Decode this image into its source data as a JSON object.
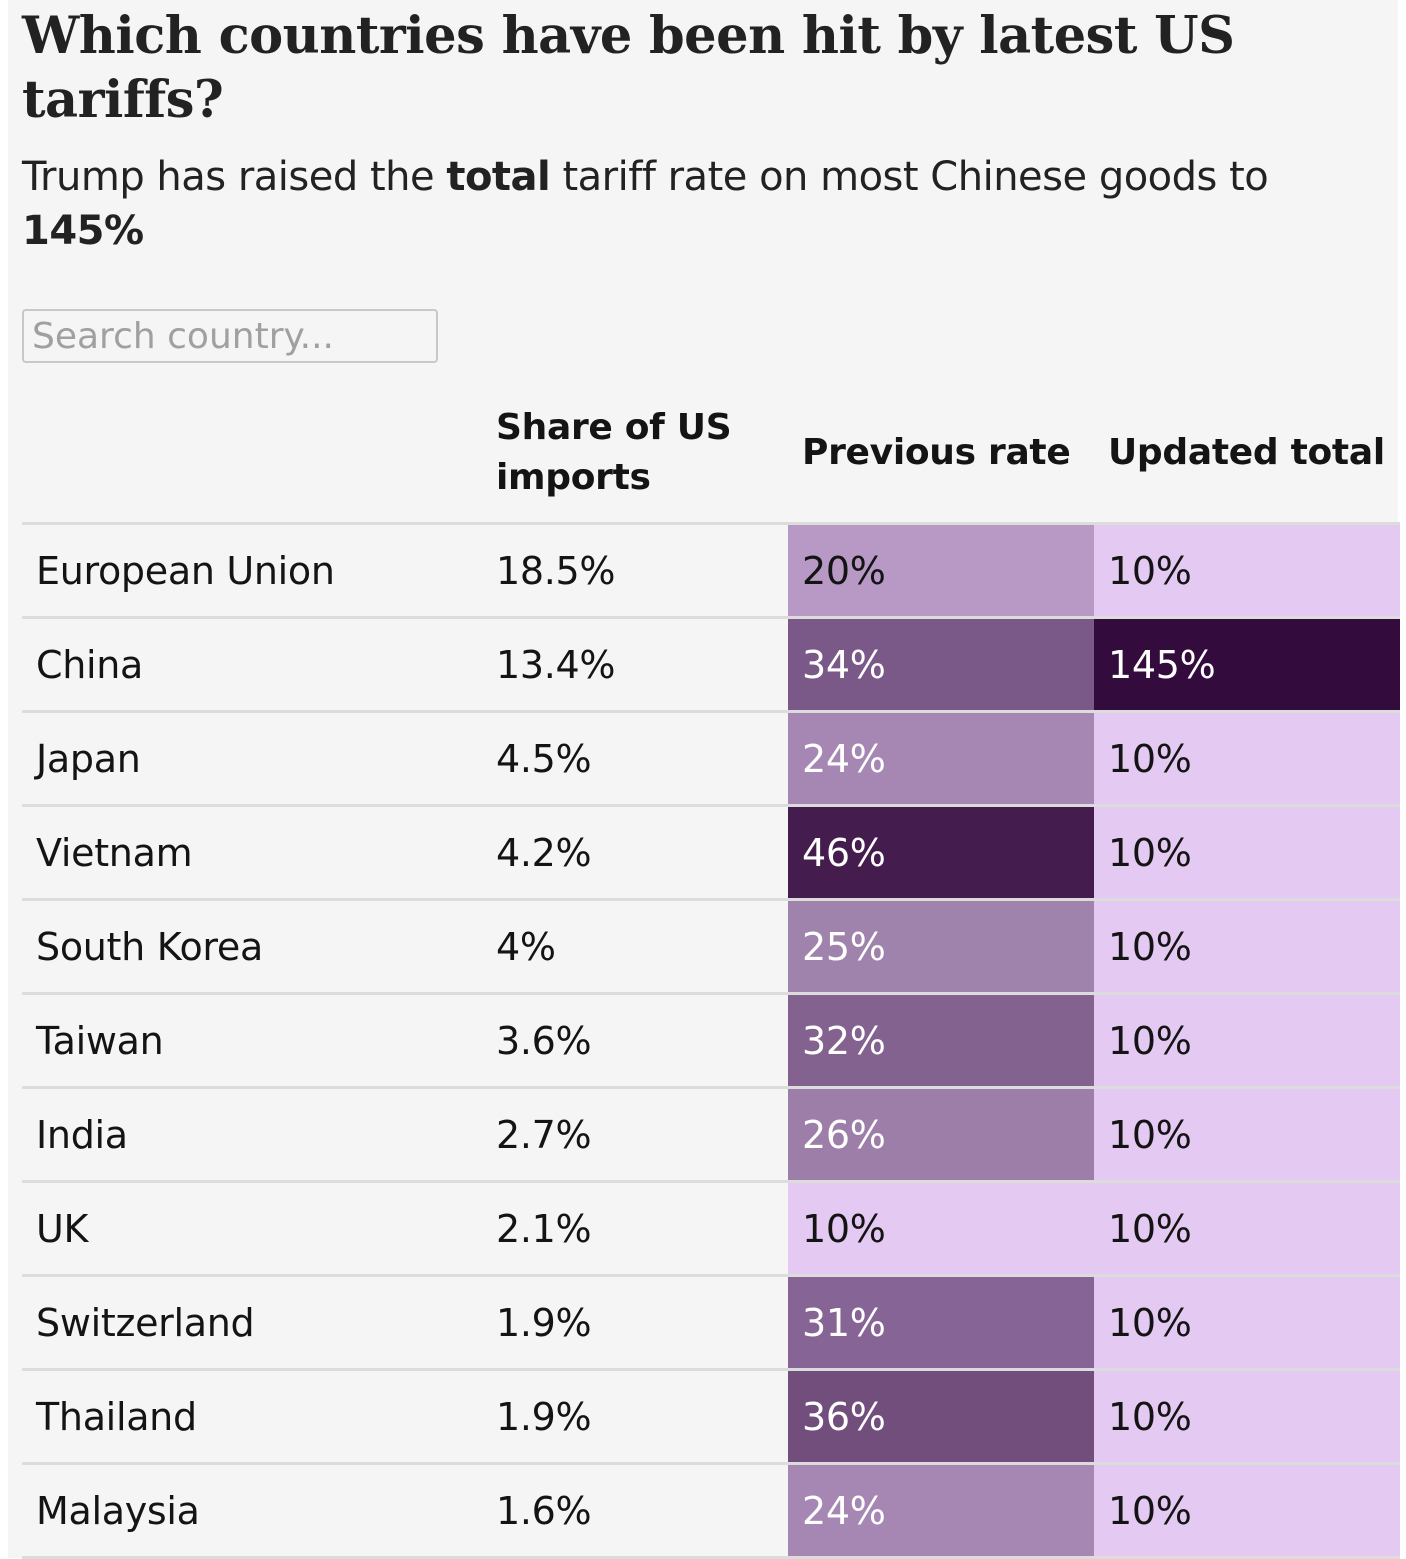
{
  "header": {
    "title": "Which countries have been hit by latest US tariffs?",
    "subtitle_pre": "Trump has raised the ",
    "subtitle_bold1": "total",
    "subtitle_mid": " tariff rate on most Chinese goods to ",
    "subtitle_bold2": "145%"
  },
  "search": {
    "placeholder": "Search country...",
    "value": ""
  },
  "chart_data": {
    "type": "table",
    "title": "Which countries have been hit by latest US tariffs?",
    "subtitle": "Trump has raised the total tariff rate on most Chinese goods to 145%",
    "columns": [
      "",
      "Share of US imports",
      "Previous rate",
      "Updated total"
    ],
    "rows": [
      {
        "country": "European Union",
        "share": "18.5%",
        "previous": "20%",
        "updated": "10%",
        "previous_value": 20,
        "updated_value": 10
      },
      {
        "country": "China",
        "share": "13.4%",
        "previous": "34%",
        "updated": "145%",
        "previous_value": 34,
        "updated_value": 145
      },
      {
        "country": "Japan",
        "share": "4.5%",
        "previous": "24%",
        "updated": "10%",
        "previous_value": 24,
        "updated_value": 10
      },
      {
        "country": "Vietnam",
        "share": "4.2%",
        "previous": "46%",
        "updated": "10%",
        "previous_value": 46,
        "updated_value": 10
      },
      {
        "country": "South Korea",
        "share": "4%",
        "previous": "25%",
        "updated": "10%",
        "previous_value": 25,
        "updated_value": 10
      },
      {
        "country": "Taiwan",
        "share": "3.6%",
        "previous": "32%",
        "updated": "10%",
        "previous_value": 32,
        "updated_value": 10
      },
      {
        "country": "India",
        "share": "2.7%",
        "previous": "26%",
        "updated": "10%",
        "previous_value": 26,
        "updated_value": 10
      },
      {
        "country": "UK",
        "share": "2.1%",
        "previous": "10%",
        "updated": "10%",
        "previous_value": 10,
        "updated_value": 10
      },
      {
        "country": "Switzerland",
        "share": "1.9%",
        "previous": "31%",
        "updated": "10%",
        "previous_value": 31,
        "updated_value": 10
      },
      {
        "country": "Thailand",
        "share": "1.9%",
        "previous": "36%",
        "updated": "10%",
        "previous_value": 36,
        "updated_value": 10
      },
      {
        "country": "Malaysia",
        "share": "1.6%",
        "previous": "24%",
        "updated": "10%",
        "previous_value": 24,
        "updated_value": 10
      }
    ],
    "heat_colors": {
      "10": "#e4c9f2",
      "20": "#b898c4",
      "24": "#a687b4",
      "25": "#a083ad",
      "26": "#9c7ea8",
      "31": "#876496",
      "32": "#83628f",
      "34": "#7a5887",
      "36": "#724e7d",
      "46": "#441c4e",
      "145": "#330b3d"
    },
    "dark_text_values": [
      10,
      20
    ]
  }
}
